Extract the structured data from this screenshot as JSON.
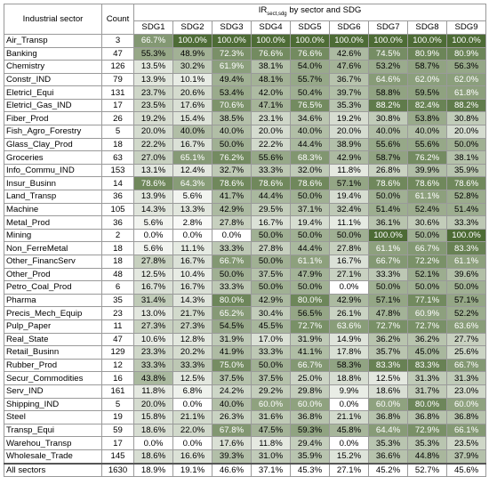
{
  "chart_data": {
    "type": "table",
    "header": {
      "sector_label": "Industrial sector",
      "count_label": "Count",
      "title_main": "IR",
      "title_sub": "sect,sdg",
      "title_rest": " by sector and SDG"
    },
    "columns": [
      "SDG1",
      "SDG2",
      "SDG3",
      "SDG4",
      "SDG5",
      "SDG6",
      "SDG7",
      "SDG8",
      "SDG9"
    ],
    "rows": [
      {
        "sector": "Air_Transp",
        "count": 3,
        "values": [
          66.7,
          100.0,
          100.0,
          100.0,
          100.0,
          100.0,
          100.0,
          100.0,
          100.0
        ]
      },
      {
        "sector": "Banking",
        "count": 47,
        "values": [
          55.3,
          48.9,
          72.3,
          76.6,
          76.6,
          42.6,
          74.5,
          80.9,
          80.9
        ]
      },
      {
        "sector": "Chemistry",
        "count": 126,
        "values": [
          13.5,
          30.2,
          61.9,
          38.1,
          54.0,
          47.6,
          53.2,
          58.7,
          56.3
        ]
      },
      {
        "sector": "Constr_IND",
        "count": 79,
        "values": [
          13.9,
          10.1,
          49.4,
          48.1,
          55.7,
          36.7,
          64.6,
          62.0,
          62.0
        ]
      },
      {
        "sector": "Eletricl_Equi",
        "count": 131,
        "values": [
          23.7,
          20.6,
          53.4,
          42.0,
          50.4,
          39.7,
          58.8,
          59.5,
          61.8
        ]
      },
      {
        "sector": "Eletricl_Gas_IND",
        "count": 17,
        "values": [
          23.5,
          17.6,
          70.6,
          47.1,
          76.5,
          35.3,
          88.2,
          82.4,
          88.2
        ]
      },
      {
        "sector": "Fiber_Prod",
        "count": 26,
        "values": [
          19.2,
          15.4,
          38.5,
          23.1,
          34.6,
          19.2,
          30.8,
          53.8,
          30.8
        ]
      },
      {
        "sector": "Fish_Agro_Forestry",
        "count": 5,
        "values": [
          20.0,
          40.0,
          40.0,
          20.0,
          40.0,
          20.0,
          40.0,
          40.0,
          20.0
        ]
      },
      {
        "sector": "Glass_Clay_Prod",
        "count": 18,
        "values": [
          22.2,
          16.7,
          50.0,
          22.2,
          44.4,
          38.9,
          55.6,
          55.6,
          50.0
        ]
      },
      {
        "sector": "Groceries",
        "count": 63,
        "values": [
          27.0,
          65.1,
          76.2,
          55.6,
          68.3,
          42.9,
          58.7,
          76.2,
          38.1
        ]
      },
      {
        "sector": "Info_Commu_IND",
        "count": 153,
        "values": [
          13.1,
          12.4,
          32.7,
          33.3,
          32.0,
          11.8,
          26.8,
          39.9,
          35.9
        ]
      },
      {
        "sector": "Insur_Businn",
        "count": 14,
        "values": [
          78.6,
          64.3,
          78.6,
          78.6,
          78.6,
          57.1,
          78.6,
          78.6,
          78.6
        ]
      },
      {
        "sector": "Land_Transp",
        "count": 36,
        "values": [
          13.9,
          5.6,
          41.7,
          44.4,
          50.0,
          19.4,
          50.0,
          61.1,
          52.8
        ]
      },
      {
        "sector": "Machine",
        "count": 105,
        "values": [
          14.3,
          13.3,
          42.9,
          29.5,
          37.1,
          32.4,
          51.4,
          52.4,
          51.4
        ]
      },
      {
        "sector": "Metal_Prod",
        "count": 36,
        "values": [
          5.6,
          2.8,
          27.8,
          16.7,
          19.4,
          11.1,
          36.1,
          30.6,
          33.3
        ]
      },
      {
        "sector": "Mining",
        "count": 2,
        "values": [
          0.0,
          0.0,
          0.0,
          50.0,
          50.0,
          50.0,
          100.0,
          50.0,
          100.0
        ]
      },
      {
        "sector": "Non_FerreMetal",
        "count": 18,
        "values": [
          5.6,
          11.1,
          33.3,
          27.8,
          44.4,
          27.8,
          61.1,
          66.7,
          83.3
        ]
      },
      {
        "sector": "Other_FinancServ",
        "count": 18,
        "values": [
          27.8,
          16.7,
          66.7,
          50.0,
          61.1,
          16.7,
          66.7,
          72.2,
          61.1
        ]
      },
      {
        "sector": "Other_Prod",
        "count": 48,
        "values": [
          12.5,
          10.4,
          50.0,
          37.5,
          47.9,
          27.1,
          33.3,
          52.1,
          39.6
        ]
      },
      {
        "sector": "Petro_Coal_Prod",
        "count": 6,
        "values": [
          16.7,
          16.7,
          33.3,
          50.0,
          50.0,
          0.0,
          50.0,
          50.0,
          50.0
        ]
      },
      {
        "sector": "Pharma",
        "count": 35,
        "values": [
          31.4,
          14.3,
          80.0,
          42.9,
          80.0,
          42.9,
          57.1,
          77.1,
          57.1
        ]
      },
      {
        "sector": "Precis_Mech_Equip",
        "count": 23,
        "values": [
          13.0,
          21.7,
          65.2,
          30.4,
          56.5,
          26.1,
          47.8,
          60.9,
          52.2
        ]
      },
      {
        "sector": "Pulp_Paper",
        "count": 11,
        "values": [
          27.3,
          27.3,
          54.5,
          45.5,
          72.7,
          63.6,
          72.7,
          72.7,
          63.6
        ]
      },
      {
        "sector": "Real_State",
        "count": 47,
        "values": [
          10.6,
          12.8,
          31.9,
          17.0,
          31.9,
          14.9,
          36.2,
          36.2,
          27.7
        ]
      },
      {
        "sector": "Retail_Businn",
        "count": 129,
        "values": [
          23.3,
          20.2,
          41.9,
          33.3,
          41.1,
          17.8,
          35.7,
          45.0,
          25.6
        ]
      },
      {
        "sector": "Rubber_Prod",
        "count": 12,
        "values": [
          33.3,
          33.3,
          75.0,
          50.0,
          66.7,
          58.3,
          83.3,
          83.3,
          66.7
        ]
      },
      {
        "sector": "Secur_Commodities",
        "count": 16,
        "values": [
          43.8,
          12.5,
          37.5,
          37.5,
          25.0,
          18.8,
          12.5,
          31.3,
          31.3
        ]
      },
      {
        "sector": "Serv_IND",
        "count": 161,
        "values": [
          11.8,
          6.8,
          24.2,
          29.2,
          29.8,
          9.9,
          18.6,
          31.7,
          23.0
        ]
      },
      {
        "sector": "Shipping_IND",
        "count": 5,
        "values": [
          20.0,
          0.0,
          40.0,
          60.0,
          60.0,
          0.0,
          60.0,
          80.0,
          60.0
        ]
      },
      {
        "sector": "Steel",
        "count": 19,
        "values": [
          15.8,
          21.1,
          26.3,
          31.6,
          36.8,
          21.1,
          36.8,
          36.8,
          36.8
        ]
      },
      {
        "sector": "Transp_Equi",
        "count": 59,
        "values": [
          18.6,
          22.0,
          67.8,
          47.5,
          59.3,
          45.8,
          64.4,
          72.9,
          66.1
        ]
      },
      {
        "sector": "Warehou_Transp",
        "count": 17,
        "values": [
          0.0,
          0.0,
          17.6,
          11.8,
          29.4,
          0.0,
          35.3,
          35.3,
          23.5
        ]
      },
      {
        "sector": "Wholesale_Trade",
        "count": 145,
        "values": [
          18.6,
          16.6,
          39.3,
          31.0,
          35.9,
          15.2,
          36.6,
          44.8,
          37.9
        ]
      }
    ],
    "total": {
      "sector": "All sectors",
      "count": 1630,
      "values": [
        18.9,
        19.1,
        46.6,
        37.1,
        45.3,
        27.1,
        45.2,
        52.7,
        45.6
      ]
    },
    "value_suffix": "%",
    "color_scale": {
      "low": "#ffffff",
      "high": "#4d6b35",
      "text_dark": "#000000",
      "text_light": "#ffffff"
    }
  }
}
